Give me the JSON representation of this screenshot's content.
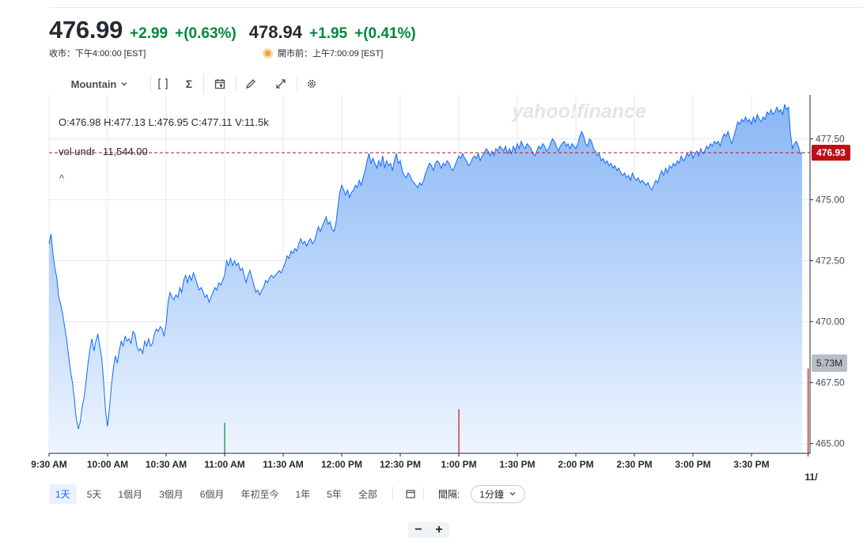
{
  "quote": {
    "close_price": "476.99",
    "close_change": "+2.99",
    "close_change_pct": "+(0.63%)",
    "close_label": "收市：下午4:00:00 [EST]",
    "pre_price": "478.94",
    "pre_change": "+1.95",
    "pre_change_pct": "+(0.41%)",
    "pre_label": "開市前：上午7:00:09 [EST]"
  },
  "toolbar": {
    "chart_type_label": "Mountain",
    "indicator_symbol": "Σ"
  },
  "legend": {
    "ohlcv": "O:476.98  H:477.13  L:476.95  C:477.11  V:11.5k",
    "vol_label": "vol undr",
    "vol_value": "11,544.00",
    "collapse": "^"
  },
  "watermark": "yahoo!finance",
  "zoom": {
    "minus": "−",
    "plus": "+"
  },
  "range": {
    "buttons": [
      "1天",
      "5天",
      "1個月",
      "3個月",
      "6個月",
      "年初至今",
      "1年",
      "5年",
      "全部"
    ],
    "active_index": 0,
    "interval_label": "間隔:",
    "interval_value": "1分鐘"
  },
  "colors": {
    "up": "#00873c",
    "line": "#0f69ff",
    "fill_top": "#8ab7f5",
    "fill_bottom": "#eef5ff",
    "last_price_tag": "#c00f17",
    "volume_tag": "#b8bec6"
  },
  "chart_data": {
    "type": "area",
    "title": "",
    "xlabel": "",
    "ylabel": "",
    "ylim": [
      464.6,
      479.3
    ],
    "y_ticks": [
      "477.50",
      "475.00",
      "472.50",
      "470.00",
      "467.50",
      "465.00"
    ],
    "y_tick_values": [
      477.5,
      475.0,
      472.5,
      470.0,
      467.5,
      465.0
    ],
    "x_ticks": [
      "9:30 AM",
      "10:00 AM",
      "10:30 AM",
      "11:00 AM",
      "11:30 AM",
      "12:00 PM",
      "12:30 PM",
      "1:00 PM",
      "1:30 PM",
      "2:00 PM",
      "2:30 PM",
      "3:00 PM",
      "3:30 PM",
      "11/"
    ],
    "x_tick_minutes": [
      0,
      30,
      60,
      90,
      120,
      150,
      180,
      210,
      240,
      270,
      300,
      330,
      360,
      389
    ],
    "x_range_minutes": [
      0,
      390
    ],
    "grid": true,
    "last_price": "476.93",
    "last_price_value": 476.93,
    "volume_label": "5.73M",
    "price_series": [
      [
        0,
        473.2
      ],
      [
        1,
        473.6
      ],
      [
        2,
        472.8
      ],
      [
        3,
        472.2
      ],
      [
        4,
        471.8
      ],
      [
        5,
        471.0
      ],
      [
        6,
        470.7
      ],
      [
        7,
        470.3
      ],
      [
        8,
        469.8
      ],
      [
        9,
        469.3
      ],
      [
        10,
        468.6
      ],
      [
        11,
        468.0
      ],
      [
        12,
        467.5
      ],
      [
        13,
        466.8
      ],
      [
        14,
        466.0
      ],
      [
        15,
        465.6
      ],
      [
        16,
        465.9
      ],
      [
        17,
        466.5
      ],
      [
        18,
        466.9
      ],
      [
        19,
        467.6
      ],
      [
        20,
        468.3
      ],
      [
        21,
        468.9
      ],
      [
        22,
        469.3
      ],
      [
        23,
        468.8
      ],
      [
        24,
        469.2
      ],
      [
        25,
        469.5
      ],
      [
        26,
        469.0
      ],
      [
        27,
        468.5
      ],
      [
        28,
        467.5
      ],
      [
        29,
        466.3
      ],
      [
        30,
        465.7
      ],
      [
        31,
        466.5
      ],
      [
        32,
        467.4
      ],
      [
        33,
        468.1
      ],
      [
        34,
        468.6
      ],
      [
        35,
        468.3
      ],
      [
        36,
        468.8
      ],
      [
        37,
        469.2
      ],
      [
        38,
        469.0
      ],
      [
        39,
        469.4
      ],
      [
        40,
        469.2
      ],
      [
        41,
        469.3
      ],
      [
        42,
        469.1
      ],
      [
        43,
        469.6
      ],
      [
        44,
        469.5
      ],
      [
        45,
        469.0
      ],
      [
        46,
        468.8
      ],
      [
        47,
        468.9
      ],
      [
        48,
        468.7
      ],
      [
        49,
        469.2
      ],
      [
        50,
        469.0
      ],
      [
        51,
        469.3
      ],
      [
        52,
        469.0
      ],
      [
        53,
        469.1
      ],
      [
        54,
        469.5
      ],
      [
        55,
        469.7
      ],
      [
        56,
        469.6
      ],
      [
        57,
        469.8
      ],
      [
        58,
        469.7
      ],
      [
        59,
        469.4
      ],
      [
        60,
        469.9
      ],
      [
        61,
        470.8
      ],
      [
        62,
        471.2
      ],
      [
        63,
        471.0
      ],
      [
        64,
        470.9
      ],
      [
        65,
        471.1
      ],
      [
        66,
        471.0
      ],
      [
        67,
        471.4
      ],
      [
        68,
        471.2
      ],
      [
        69,
        471.7
      ],
      [
        70,
        471.9
      ],
      [
        71,
        471.6
      ],
      [
        72,
        471.9
      ],
      [
        73,
        471.7
      ],
      [
        74,
        472.0
      ],
      [
        75,
        471.8
      ],
      [
        76,
        471.5
      ],
      [
        77,
        471.3
      ],
      [
        78,
        471.4
      ],
      [
        79,
        471.2
      ],
      [
        80,
        471.0
      ],
      [
        81,
        471.1
      ],
      [
        82,
        470.8
      ],
      [
        83,
        471.0
      ],
      [
        84,
        471.2
      ],
      [
        85,
        471.4
      ],
      [
        86,
        471.3
      ],
      [
        87,
        471.6
      ],
      [
        88,
        471.5
      ],
      [
        89,
        471.7
      ],
      [
        90,
        471.9
      ],
      [
        91,
        472.5
      ],
      [
        92,
        472.3
      ],
      [
        93,
        472.6
      ],
      [
        94,
        472.3
      ],
      [
        95,
        472.5
      ],
      [
        96,
        472.3
      ],
      [
        97,
        472.4
      ],
      [
        98,
        472.1
      ],
      [
        99,
        472.2
      ],
      [
        100,
        471.9
      ],
      [
        101,
        471.6
      ],
      [
        102,
        471.9
      ],
      [
        103,
        472.1
      ],
      [
        104,
        471.8
      ],
      [
        105,
        471.5
      ],
      [
        106,
        471.2
      ],
      [
        107,
        471.3
      ],
      [
        108,
        471.1
      ],
      [
        109,
        471.3
      ],
      [
        110,
        471.4
      ],
      [
        111,
        471.7
      ],
      [
        112,
        471.6
      ],
      [
        113,
        471.8
      ],
      [
        114,
        471.9
      ],
      [
        115,
        471.8
      ],
      [
        116,
        471.9
      ],
      [
        117,
        472.0
      ],
      [
        118,
        472.1
      ],
      [
        119,
        472.0
      ],
      [
        120,
        472.2
      ],
      [
        121,
        472.4
      ],
      [
        122,
        472.7
      ],
      [
        123,
        472.6
      ],
      [
        124,
        472.9
      ],
      [
        125,
        472.8
      ],
      [
        126,
        473.0
      ],
      [
        127,
        472.9
      ],
      [
        128,
        473.2
      ],
      [
        129,
        473.4
      ],
      [
        130,
        473.2
      ],
      [
        131,
        473.3
      ],
      [
        132,
        473.1
      ],
      [
        133,
        473.3
      ],
      [
        134,
        473.4
      ],
      [
        135,
        473.2
      ],
      [
        136,
        473.3
      ],
      [
        137,
        473.6
      ],
      [
        138,
        473.9
      ],
      [
        139,
        473.7
      ],
      [
        140,
        473.9
      ],
      [
        141,
        474.1
      ],
      [
        142,
        474.3
      ],
      [
        143,
        474.0
      ],
      [
        144,
        474.1
      ],
      [
        145,
        473.8
      ],
      [
        146,
        473.7
      ],
      [
        147,
        474.0
      ],
      [
        148,
        474.7
      ],
      [
        149,
        475.3
      ],
      [
        150,
        475.6
      ],
      [
        151,
        475.4
      ],
      [
        152,
        475.2
      ],
      [
        153,
        475.4
      ],
      [
        154,
        475.1
      ],
      [
        155,
        475.3
      ],
      [
        156,
        475.4
      ],
      [
        157,
        475.6
      ],
      [
        158,
        475.5
      ],
      [
        159,
        475.8
      ],
      [
        160,
        475.6
      ],
      [
        161,
        475.9
      ],
      [
        162,
        476.2
      ],
      [
        163,
        476.6
      ],
      [
        164,
        476.9
      ],
      [
        165,
        476.5
      ],
      [
        166,
        476.7
      ],
      [
        167,
        476.5
      ],
      [
        168,
        476.3
      ],
      [
        169,
        476.6
      ],
      [
        170,
        476.4
      ],
      [
        171,
        476.8
      ],
      [
        172,
        476.3
      ],
      [
        173,
        476.6
      ],
      [
        174,
        476.4
      ],
      [
        175,
        476.5
      ],
      [
        176,
        476.2
      ],
      [
        177,
        476.6
      ],
      [
        178,
        476.9
      ],
      [
        179,
        476.5
      ],
      [
        180,
        476.6
      ],
      [
        181,
        476.2
      ],
      [
        182,
        476.0
      ],
      [
        183,
        475.9
      ],
      [
        184,
        476.1
      ],
      [
        185,
        476.0
      ],
      [
        186,
        475.8
      ],
      [
        187,
        475.7
      ],
      [
        188,
        475.6
      ],
      [
        189,
        475.5
      ],
      [
        190,
        475.7
      ],
      [
        191,
        475.6
      ],
      [
        192,
        475.8
      ],
      [
        193,
        476.1
      ],
      [
        194,
        476.3
      ],
      [
        195,
        476.5
      ],
      [
        196,
        476.4
      ],
      [
        197,
        476.2
      ],
      [
        198,
        476.5
      ],
      [
        199,
        476.6
      ],
      [
        200,
        476.5
      ],
      [
        201,
        476.3
      ],
      [
        202,
        476.5
      ],
      [
        203,
        476.4
      ],
      [
        204,
        476.6
      ],
      [
        205,
        476.5
      ],
      [
        206,
        476.3
      ],
      [
        207,
        476.2
      ],
      [
        208,
        476.4
      ],
      [
        209,
        476.6
      ],
      [
        210,
        476.8
      ],
      [
        211,
        476.7
      ],
      [
        212,
        476.9
      ],
      [
        213,
        476.7
      ],
      [
        214,
        476.6
      ],
      [
        215,
        476.4
      ],
      [
        216,
        476.5
      ],
      [
        217,
        476.7
      ],
      [
        218,
        476.8
      ],
      [
        219,
        476.7
      ],
      [
        220,
        476.9
      ],
      [
        221,
        476.6
      ],
      [
        222,
        476.8
      ],
      [
        223,
        476.9
      ],
      [
        224,
        477.1
      ],
      [
        225,
        477.0
      ],
      [
        226,
        476.8
      ],
      [
        227,
        477.0
      ],
      [
        228,
        476.8
      ],
      [
        229,
        477.1
      ],
      [
        230,
        477.0
      ],
      [
        231,
        477.2
      ],
      [
        232,
        477.1
      ],
      [
        233,
        477.0
      ],
      [
        234,
        477.2
      ],
      [
        235,
        476.9
      ],
      [
        236,
        477.1
      ],
      [
        237,
        476.9
      ],
      [
        238,
        477.2
      ],
      [
        239,
        477.0
      ],
      [
        240,
        477.3
      ],
      [
        241,
        477.1
      ],
      [
        242,
        477.4
      ],
      [
        243,
        477.2
      ],
      [
        244,
        477.1
      ],
      [
        245,
        477.3
      ],
      [
        246,
        477.2
      ],
      [
        247,
        477.1
      ],
      [
        248,
        476.9
      ],
      [
        249,
        476.8
      ],
      [
        250,
        477.0
      ],
      [
        251,
        477.2
      ],
      [
        252,
        477.1
      ],
      [
        253,
        477.3
      ],
      [
        254,
        477.2
      ],
      [
        255,
        477.0
      ],
      [
        256,
        477.1
      ],
      [
        257,
        477.3
      ],
      [
        258,
        477.5
      ],
      [
        259,
        477.4
      ],
      [
        260,
        477.2
      ],
      [
        261,
        477.0
      ],
      [
        262,
        477.2
      ],
      [
        263,
        477.3
      ],
      [
        264,
        477.4
      ],
      [
        265,
        477.2
      ],
      [
        266,
        477.3
      ],
      [
        267,
        477.1
      ],
      [
        268,
        477.3
      ],
      [
        269,
        477.2
      ],
      [
        270,
        477.1
      ],
      [
        271,
        477.3
      ],
      [
        272,
        477.6
      ],
      [
        273,
        477.8
      ],
      [
        274,
        477.6
      ],
      [
        275,
        477.3
      ],
      [
        276,
        477.2
      ],
      [
        277,
        477.5
      ],
      [
        278,
        477.4
      ],
      [
        279,
        477.1
      ],
      [
        280,
        477.0
      ],
      [
        281,
        476.8
      ],
      [
        282,
        476.9
      ],
      [
        283,
        476.6
      ],
      [
        284,
        476.7
      ],
      [
        285,
        476.5
      ],
      [
        286,
        476.6
      ],
      [
        287,
        476.4
      ],
      [
        288,
        476.5
      ],
      [
        289,
        476.3
      ],
      [
        290,
        476.4
      ],
      [
        291,
        476.2
      ],
      [
        292,
        476.3
      ],
      [
        293,
        476.1
      ],
      [
        294,
        476.0
      ],
      [
        295,
        476.1
      ],
      [
        296,
        475.9
      ],
      [
        297,
        476.0
      ],
      [
        298,
        475.8
      ],
      [
        299,
        476.1
      ],
      [
        300,
        475.9
      ],
      [
        301,
        475.8
      ],
      [
        302,
        475.9
      ],
      [
        303,
        475.7
      ],
      [
        304,
        475.8
      ],
      [
        305,
        475.7
      ],
      [
        306,
        475.6
      ],
      [
        307,
        475.7
      ],
      [
        308,
        475.5
      ],
      [
        309,
        475.4
      ],
      [
        310,
        475.6
      ],
      [
        311,
        475.8
      ],
      [
        312,
        475.7
      ],
      [
        313,
        476.0
      ],
      [
        314,
        476.2
      ],
      [
        315,
        476.0
      ],
      [
        316,
        476.3
      ],
      [
        317,
        476.1
      ],
      [
        318,
        476.4
      ],
      [
        319,
        476.3
      ],
      [
        320,
        476.5
      ],
      [
        321,
        476.4
      ],
      [
        322,
        476.6
      ],
      [
        323,
        476.5
      ],
      [
        324,
        476.8
      ],
      [
        325,
        476.6
      ],
      [
        326,
        476.7
      ],
      [
        327,
        476.9
      ],
      [
        328,
        476.8
      ],
      [
        329,
        477.0
      ],
      [
        330,
        476.7
      ],
      [
        331,
        476.9
      ],
      [
        332,
        477.0
      ],
      [
        333,
        476.8
      ],
      [
        334,
        477.1
      ],
      [
        335,
        476.9
      ],
      [
        336,
        477.0
      ],
      [
        337,
        477.2
      ],
      [
        338,
        477.1
      ],
      [
        339,
        477.3
      ],
      [
        340,
        477.2
      ],
      [
        341,
        477.4
      ],
      [
        342,
        477.3
      ],
      [
        343,
        477.4
      ],
      [
        344,
        477.2
      ],
      [
        345,
        477.5
      ],
      [
        346,
        477.7
      ],
      [
        347,
        477.6
      ],
      [
        348,
        477.8
      ],
      [
        349,
        477.5
      ],
      [
        350,
        477.3
      ],
      [
        351,
        477.6
      ],
      [
        352,
        477.9
      ],
      [
        353,
        478.2
      ],
      [
        354,
        478.1
      ],
      [
        355,
        478.3
      ],
      [
        356,
        478.2
      ],
      [
        357,
        478.4
      ],
      [
        358,
        478.2
      ],
      [
        359,
        478.3
      ],
      [
        360,
        478.1
      ],
      [
        361,
        478.4
      ],
      [
        362,
        478.2
      ],
      [
        363,
        478.5
      ],
      [
        364,
        478.3
      ],
      [
        365,
        478.2
      ],
      [
        366,
        478.4
      ],
      [
        367,
        478.3
      ],
      [
        368,
        478.6
      ],
      [
        369,
        478.5
      ],
      [
        370,
        478.7
      ],
      [
        371,
        478.5
      ],
      [
        372,
        478.6
      ],
      [
        373,
        478.8
      ],
      [
        374,
        478.6
      ],
      [
        375,
        478.7
      ],
      [
        376,
        478.5
      ],
      [
        377,
        478.9
      ],
      [
        378,
        478.7
      ],
      [
        379,
        478.8
      ],
      [
        380,
        477.7
      ],
      [
        381,
        477.1
      ],
      [
        382,
        477.3
      ],
      [
        383,
        477.4
      ],
      [
        384,
        477.2
      ],
      [
        385,
        476.9
      ],
      [
        386,
        476.93
      ]
    ],
    "volume_spikes": [
      {
        "minute": 90,
        "relative_height": 0.27,
        "color": "#00873c"
      },
      {
        "minute": 210,
        "relative_height": 0.39,
        "color": "#c00f17"
      },
      {
        "minute": 389,
        "relative_height": 0.75,
        "color": "#c00f17"
      }
    ]
  }
}
